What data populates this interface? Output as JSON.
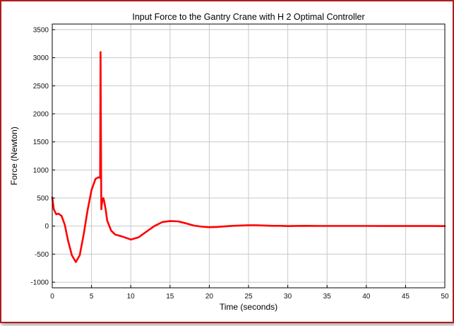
{
  "chart_data": {
    "type": "line",
    "title": "Input Force to the Gantry Crane with H 2 Optimal Controller",
    "xlabel": "Time (seconds)",
    "ylabel": "Force (Newton)",
    "xlim": [
      0,
      50
    ],
    "ylim": [
      -1100,
      3600
    ],
    "xticks": [
      0,
      5,
      10,
      15,
      20,
      25,
      30,
      35,
      40,
      45,
      50
    ],
    "yticks": [
      -1000,
      -500,
      0,
      500,
      1000,
      1500,
      2000,
      2500,
      3000,
      3500
    ],
    "grid": true,
    "series": [
      {
        "color": "#ff0000",
        "x": [
          0,
          0.2,
          0.5,
          0.8,
          1.2,
          1.6,
          2.0,
          2.5,
          3.0,
          3.5,
          4.0,
          4.5,
          5.0,
          5.5,
          5.9,
          6.1,
          6.15,
          6.2,
          6.25,
          6.3,
          6.4,
          6.5,
          6.6,
          6.8,
          7.0,
          7.5,
          8.0,
          9.0,
          10.0,
          11.0,
          12.0,
          13.0,
          14.0,
          15.0,
          16.0,
          17.0,
          18.0,
          19.0,
          20.0,
          21.0,
          22.0,
          23.0,
          24.0,
          25.0,
          26.0,
          27.0,
          28.0,
          29.0,
          30.0,
          32.0,
          34.0,
          36.0,
          38.0,
          40.0,
          42.0,
          44.0,
          46.0,
          48.0,
          50.0
        ],
        "y": [
          510,
          300,
          210,
          220,
          180,
          20,
          -250,
          -520,
          -640,
          -520,
          -150,
          280,
          640,
          840,
          870,
          860,
          3100,
          1800,
          300,
          380,
          470,
          500,
          450,
          300,
          100,
          -80,
          -150,
          -190,
          -240,
          -200,
          -100,
          0,
          70,
          90,
          85,
          50,
          10,
          -10,
          -20,
          -15,
          -5,
          5,
          10,
          15,
          15,
          10,
          5,
          5,
          0,
          5,
          3,
          3,
          2,
          2,
          1,
          1,
          1,
          1,
          0
        ]
      }
    ]
  }
}
